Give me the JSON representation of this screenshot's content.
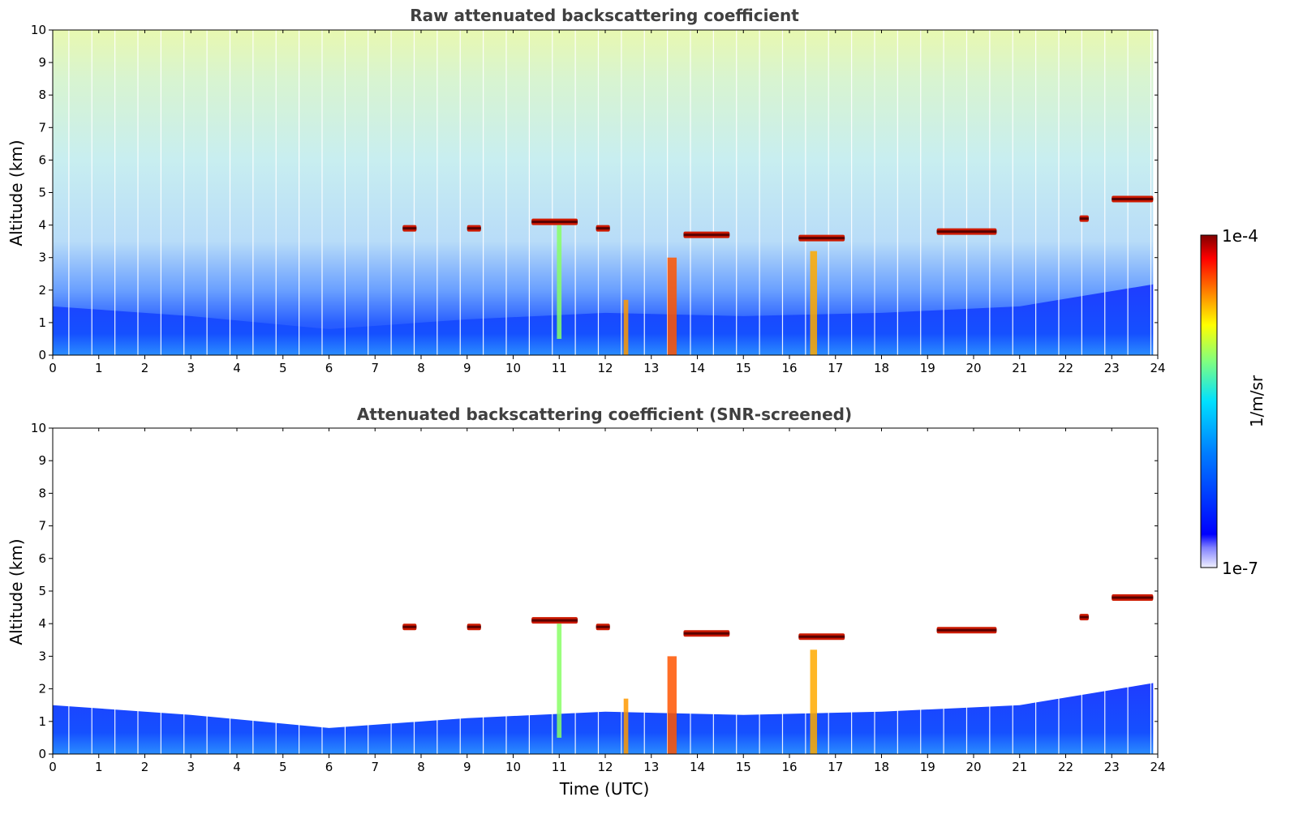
{
  "chart_data": [
    {
      "type": "heatmap",
      "title": "Raw attenuated backscattering coefficient",
      "xlabel": "",
      "ylabel": "Altitude (km)",
      "xlim": [
        0,
        24
      ],
      "ylim": [
        0,
        10
      ],
      "xticks": [
        "0",
        "1",
        "2",
        "3",
        "4",
        "5",
        "6",
        "7",
        "8",
        "9",
        "10",
        "11",
        "12",
        "13",
        "14",
        "15",
        "16",
        "17",
        "18",
        "19",
        "20",
        "21",
        "22",
        "23",
        "24"
      ],
      "yticks": [
        "0",
        "1",
        "2",
        "3",
        "4",
        "5",
        "6",
        "7",
        "8",
        "9",
        "10"
      ],
      "boundary_layer_top_km": [
        [
          0,
          1.5
        ],
        [
          3,
          1.2
        ],
        [
          6,
          0.8
        ],
        [
          9,
          1.1
        ],
        [
          12,
          1.3
        ],
        [
          15,
          1.2
        ],
        [
          18,
          1.3
        ],
        [
          21,
          1.5
        ],
        [
          24,
          2.2
        ]
      ],
      "cloud_layers": [
        {
          "time_start": 7.6,
          "time_end": 7.9,
          "altitude_km": 3.9
        },
        {
          "time_start": 9.0,
          "time_end": 9.3,
          "altitude_km": 3.9
        },
        {
          "time_start": 10.4,
          "time_end": 11.4,
          "altitude_km": 4.1
        },
        {
          "time_start": 11.8,
          "time_end": 12.1,
          "altitude_km": 3.9
        },
        {
          "time_start": 13.7,
          "time_end": 14.7,
          "altitude_km": 3.7
        },
        {
          "time_start": 16.2,
          "time_end": 17.2,
          "altitude_km": 3.6
        },
        {
          "time_start": 19.2,
          "time_end": 20.5,
          "altitude_km": 3.8
        },
        {
          "time_start": 22.3,
          "time_end": 22.5,
          "altitude_km": 4.2
        },
        {
          "time_start": 23.0,
          "time_end": 23.9,
          "altitude_km": 4.8
        }
      ]
    },
    {
      "type": "heatmap",
      "title": "Attenuated backscattering coefficient (SNR-screened)",
      "xlabel": "Time (UTC)",
      "ylabel": "Altitude (km)",
      "xlim": [
        0,
        24
      ],
      "ylim": [
        0,
        10
      ],
      "xticks": [
        "0",
        "1",
        "2",
        "3",
        "4",
        "5",
        "6",
        "7",
        "8",
        "9",
        "10",
        "11",
        "12",
        "13",
        "14",
        "15",
        "16",
        "17",
        "18",
        "19",
        "20",
        "21",
        "22",
        "23",
        "24"
      ],
      "yticks": [
        "0",
        "1",
        "2",
        "3",
        "4",
        "5",
        "6",
        "7",
        "8",
        "9",
        "10"
      ]
    }
  ],
  "colorbar": {
    "label": "1/m/sr",
    "max_label": "1e-4",
    "min_label": "1e-7",
    "colors": [
      "#ffffff",
      "#0000ff",
      "#00a0ff",
      "#00ffff",
      "#80ff80",
      "#ffff00",
      "#ff8000",
      "#ff0000",
      "#800000"
    ]
  }
}
